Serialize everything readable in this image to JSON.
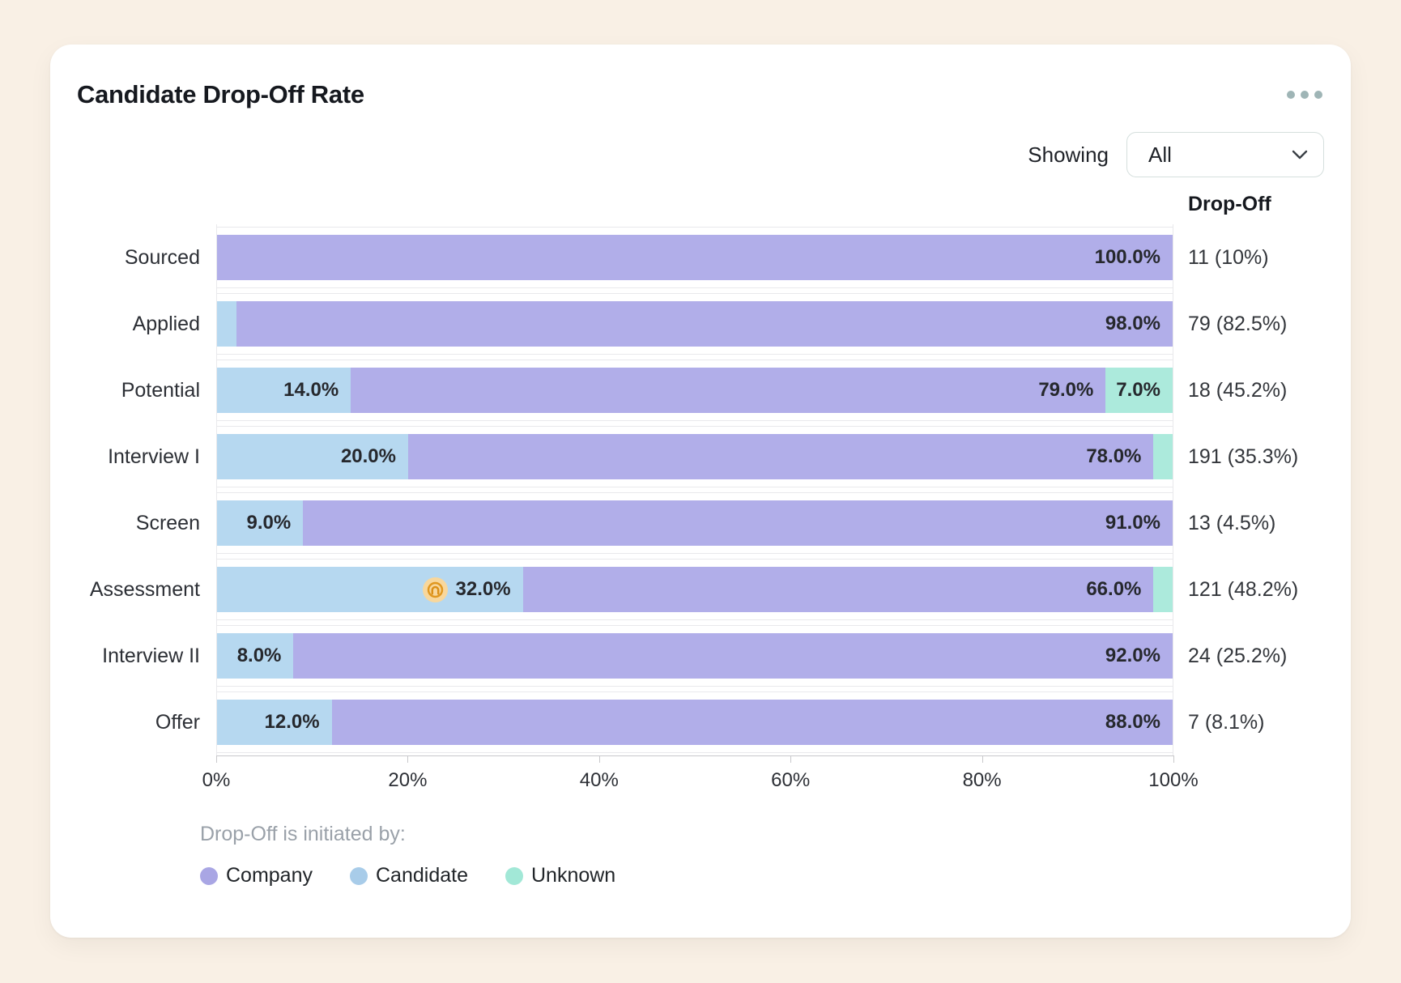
{
  "card": {
    "title": "Candidate Drop-Off Rate"
  },
  "controls": {
    "showing_label": "Showing",
    "filter_value": "All"
  },
  "chart_data": {
    "type": "bar",
    "orientation": "horizontal",
    "stacked": true,
    "unit": "%",
    "xlim": [
      0,
      100
    ],
    "xticks": [
      "0%",
      "20%",
      "40%",
      "60%",
      "80%",
      "100%"
    ],
    "grid": false,
    "categories": [
      "Sourced",
      "Applied",
      "Potential",
      "Interview I",
      "Screen",
      "Assessment",
      "Interview II",
      "Offer"
    ],
    "series": [
      {
        "name": "Candidate",
        "color": "#b6d8f0",
        "values": [
          0,
          2,
          14,
          20,
          9,
          32,
          8,
          12
        ]
      },
      {
        "name": "Company",
        "color": "#b1aee9",
        "values": [
          100,
          98,
          79,
          78,
          91,
          66,
          92,
          88
        ]
      },
      {
        "name": "Unknown",
        "color": "#aceadc",
        "values": [
          0,
          0,
          7,
          2,
          0,
          2,
          0,
          0
        ]
      }
    ],
    "segment_label_min_pct": 5,
    "icon_annotation": {
      "category": "Assessment",
      "series": "Candidate",
      "icon": "target-icon"
    },
    "dropoff_column": {
      "header": "Drop-Off",
      "values": [
        "11 (10%)",
        "79 (82.5%)",
        "18 (45.2%)",
        "191 (35.3%)",
        "13 (4.5%)",
        "121 (48.2%)",
        "24 (25.2%)",
        "7 (8.1%)"
      ]
    },
    "legend": {
      "caption": "Drop-Off is initiated by:",
      "position": "bottom-left",
      "items": [
        {
          "label": "Company",
          "color": "#a9a6e4"
        },
        {
          "label": "Candidate",
          "color": "#a8cce9"
        },
        {
          "label": "Unknown",
          "color": "#a2e8d7"
        }
      ]
    }
  },
  "colors": {
    "page_bg": "#f9f0e5",
    "card_bg": "#ffffff",
    "annotation_orange": "#e0971f"
  }
}
